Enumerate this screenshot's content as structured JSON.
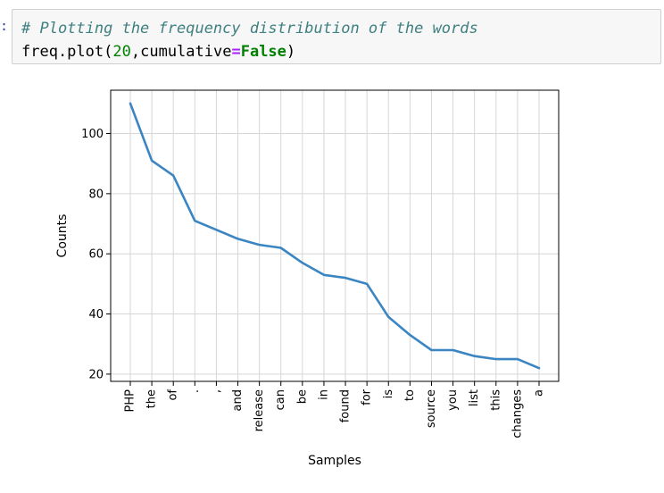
{
  "cell": {
    "prompt": ":",
    "comment": "# Plotting the frequency distribution of the words",
    "code_name": "freq.plot",
    "code_open": "(",
    "code_arg_number": "20",
    "code_comma": ",",
    "code_kwarg": "cumulative",
    "code_equals": "=",
    "code_kwarg_value": "False",
    "code_close": ")"
  },
  "colors": {
    "line": "#3a85c2",
    "grid": "#d6d6d6",
    "comment": "#408080",
    "keyword": "#008000",
    "operator": "#aa22ff"
  },
  "chart_data": {
    "type": "line",
    "categories": [
      "PHP",
      "the",
      "of",
      ".",
      ",",
      "and",
      "release",
      "can",
      "be",
      "in",
      "found",
      "for",
      "is",
      "to",
      "source",
      "you",
      "list",
      "this",
      "changes",
      "a"
    ],
    "values": [
      110,
      91,
      86,
      71,
      68,
      65,
      63,
      62,
      57,
      53,
      52,
      50,
      39,
      33,
      28,
      28,
      26,
      25,
      25,
      22
    ],
    "xlabel": "Samples",
    "ylabel": "Counts",
    "yticks": [
      20,
      40,
      60,
      80,
      100
    ],
    "ylim": [
      17.6,
      114.4
    ],
    "grid": true
  }
}
